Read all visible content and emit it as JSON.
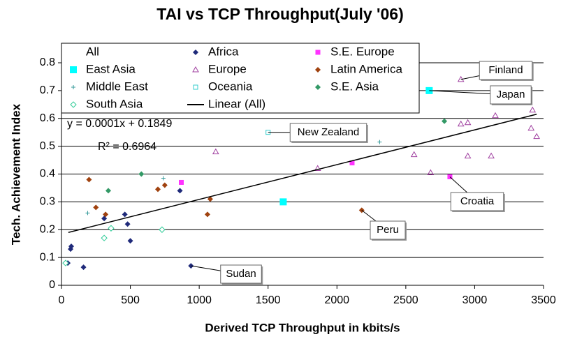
{
  "chart_data": {
    "type": "scatter",
    "title": "TAI vs TCP Throughput(July '06)",
    "x_label": "Derived TCP Throughput in kbits/s",
    "y_label": "Tech. Achievement Index",
    "xlim": [
      0,
      3500
    ],
    "ylim": [
      0,
      0.8
    ],
    "xticks": [
      0,
      500,
      1000,
      1500,
      2000,
      2500,
      3000,
      3500
    ],
    "yticks": [
      0,
      0.1,
      0.2,
      0.3,
      0.4,
      0.5,
      0.6,
      0.7,
      0.8
    ],
    "grid": true,
    "legend": "top-left",
    "series": [
      {
        "name": "All",
        "color": "#000000",
        "marker": "none",
        "x": [],
        "values": []
      },
      {
        "name": "Africa",
        "color": "#1f2a7a",
        "marker": "diamond",
        "x": [
          46,
          66,
          71,
          160,
          310,
          460,
          480,
          500,
          860,
          940
        ],
        "values": [
          0.08,
          0.13,
          0.14,
          0.065,
          0.24,
          0.255,
          0.22,
          0.16,
          0.34,
          0.07
        ]
      },
      {
        "name": "S.E. Europe",
        "color": "#ff33ff",
        "marker": "square",
        "x": [
          870,
          2110,
          2820
        ],
        "values": [
          0.37,
          0.44,
          0.39
        ]
      },
      {
        "name": "East Asia",
        "color": "#00ffff",
        "marker": "square-big",
        "x": [
          1610,
          2670
        ],
        "values": [
          0.3,
          0.7
        ]
      },
      {
        "name": "Europe",
        "color": "#a040a0",
        "marker": "triangle",
        "x": [
          1120,
          1860,
          2560,
          2680,
          2900,
          2900,
          2950,
          2950,
          3120,
          3150,
          3410,
          3420,
          3450
        ],
        "values": [
          0.48,
          0.42,
          0.47,
          0.405,
          0.74,
          0.58,
          0.585,
          0.465,
          0.465,
          0.61,
          0.565,
          0.63,
          0.535
        ]
      },
      {
        "name": "Latin America",
        "color": "#a0420f",
        "marker": "diamond",
        "x": [
          200,
          250,
          320,
          700,
          750,
          1060,
          1080,
          2180
        ],
        "values": [
          0.38,
          0.28,
          0.255,
          0.345,
          0.36,
          0.255,
          0.31,
          0.27
        ]
      },
      {
        "name": "Middle East",
        "color": "#339999",
        "marker": "plus",
        "x": [
          190,
          740,
          2310
        ],
        "values": [
          0.26,
          0.385,
          0.515
        ]
      },
      {
        "name": "Oceania",
        "color": "#33cccc",
        "marker": "open-square",
        "x": [
          1500
        ],
        "values": [
          0.55
        ]
      },
      {
        "name": "S.E. Asia",
        "color": "#339966",
        "marker": "diamond",
        "x": [
          340,
          580,
          2780
        ],
        "values": [
          0.34,
          0.4,
          0.59
        ]
      },
      {
        "name": "South Asia",
        "color": "#33cc99",
        "marker": "open-diamond",
        "x": [
          30,
          310,
          360,
          730
        ],
        "values": [
          0.08,
          0.17,
          0.205,
          0.2
        ]
      },
      {
        "name": "Linear (All)",
        "color": "#000000",
        "marker": "line",
        "x": [
          50,
          3450
        ],
        "values": [
          0.19,
          0.615
        ]
      }
    ],
    "equation": "y = 0.0001x + 0.1849",
    "r_squared": "R² = 0.6964",
    "annotations": [
      {
        "text": "Finland",
        "x": 2900,
        "y": 0.74
      },
      {
        "text": "Japan",
        "x": 2670,
        "y": 0.7
      },
      {
        "text": "New Zealand",
        "x": 1500,
        "y": 0.55
      },
      {
        "text": "Croatia",
        "x": 2820,
        "y": 0.39
      },
      {
        "text": "Peru",
        "x": 2180,
        "y": 0.27
      },
      {
        "text": "Sudan",
        "x": 940,
        "y": 0.07
      }
    ]
  }
}
